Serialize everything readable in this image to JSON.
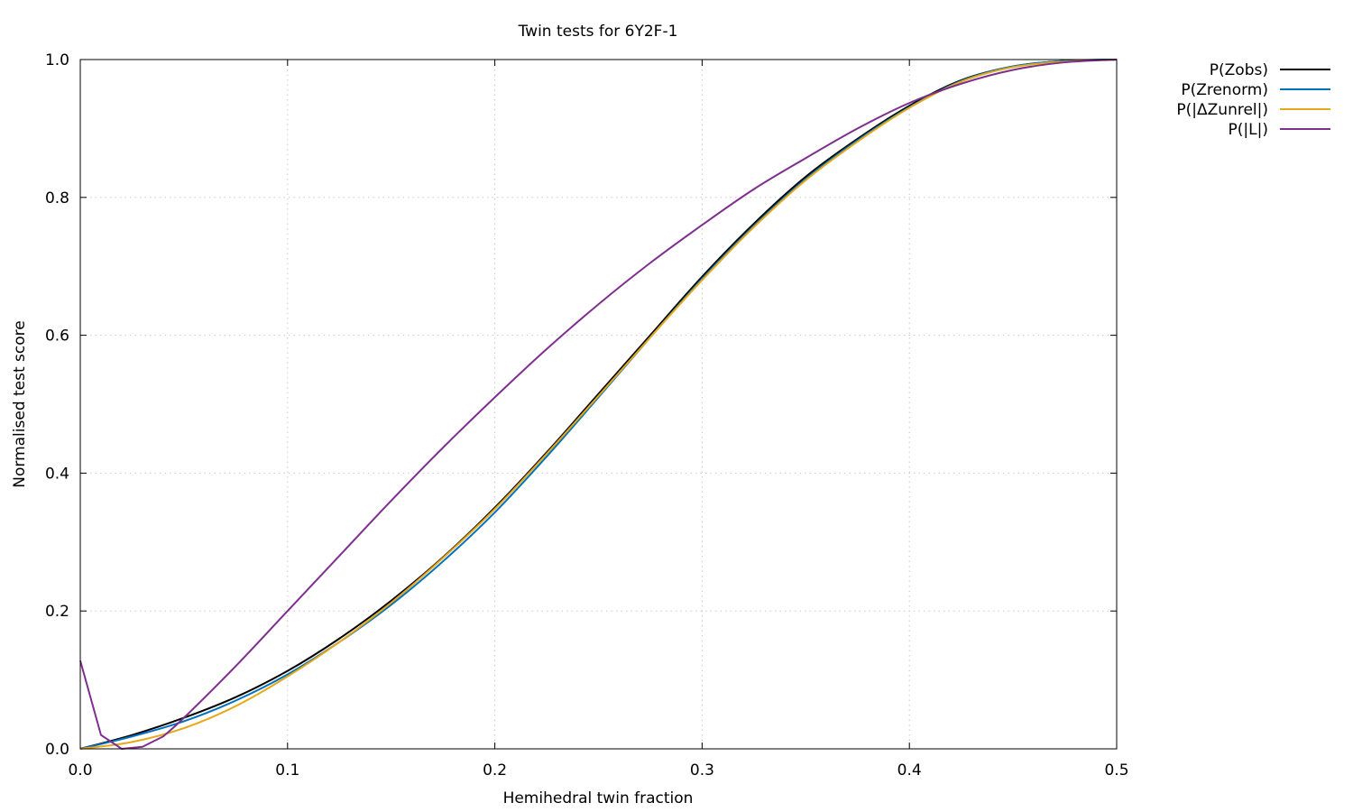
{
  "chart_data": {
    "type": "line",
    "title": "Twin tests for 6Y2F-1",
    "xlabel": "Hemihedral twin fraction",
    "ylabel": "Normalised test score",
    "xlim": [
      0.0,
      0.5
    ],
    "ylim": [
      0.0,
      1.0
    ],
    "grid": true,
    "legend_position": "outside-top-right",
    "x_ticks": [
      {
        "value": 0.0,
        "label": "0.0"
      },
      {
        "value": 0.1,
        "label": "0.1"
      },
      {
        "value": 0.2,
        "label": "0.2"
      },
      {
        "value": 0.3,
        "label": "0.3"
      },
      {
        "value": 0.4,
        "label": "0.4"
      },
      {
        "value": 0.5,
        "label": "0.5"
      }
    ],
    "y_ticks": [
      {
        "value": 0.0,
        "label": "0.0"
      },
      {
        "value": 0.2,
        "label": "0.2"
      },
      {
        "value": 0.4,
        "label": "0.4"
      },
      {
        "value": 0.6,
        "label": "0.6"
      },
      {
        "value": 0.8,
        "label": "0.8"
      },
      {
        "value": 1.0,
        "label": "1.0"
      }
    ],
    "series": [
      {
        "name": "P(Zobs)",
        "color": "#000000",
        "x": [
          0.0,
          0.025,
          0.05,
          0.075,
          0.1,
          0.125,
          0.15,
          0.175,
          0.2,
          0.225,
          0.25,
          0.275,
          0.3,
          0.325,
          0.35,
          0.375,
          0.4,
          0.425,
          0.45,
          0.475,
          0.5
        ],
        "y": [
          0.0,
          0.02,
          0.045,
          0.075,
          0.113,
          0.16,
          0.215,
          0.278,
          0.35,
          0.43,
          0.515,
          0.6,
          0.685,
          0.762,
          0.83,
          0.885,
          0.933,
          0.97,
          0.99,
          0.998,
          1.0
        ]
      },
      {
        "name": "P(Zrenorm)",
        "color": "#0072bd",
        "x": [
          0.0,
          0.025,
          0.05,
          0.075,
          0.1,
          0.125,
          0.15,
          0.175,
          0.2,
          0.225,
          0.25,
          0.275,
          0.3,
          0.325,
          0.35,
          0.375,
          0.4,
          0.425,
          0.45,
          0.475,
          0.5
        ],
        "y": [
          0.0,
          0.018,
          0.04,
          0.07,
          0.108,
          0.155,
          0.209,
          0.272,
          0.343,
          0.424,
          0.51,
          0.597,
          0.682,
          0.759,
          0.827,
          0.883,
          0.931,
          0.969,
          0.99,
          0.998,
          1.0
        ]
      },
      {
        "name": "P(|ΔZunrel|)",
        "color": "#e6a817",
        "x": [
          0.0,
          0.025,
          0.05,
          0.075,
          0.1,
          0.125,
          0.15,
          0.175,
          0.2,
          0.225,
          0.25,
          0.275,
          0.3,
          0.325,
          0.35,
          0.375,
          0.4,
          0.425,
          0.45,
          0.475,
          0.5
        ],
        "y": [
          0.0,
          0.01,
          0.03,
          0.062,
          0.105,
          0.155,
          0.212,
          0.277,
          0.348,
          0.428,
          0.512,
          0.597,
          0.68,
          0.757,
          0.825,
          0.881,
          0.93,
          0.968,
          0.989,
          0.997,
          1.0
        ]
      },
      {
        "name": "P(|L|)",
        "color": "#7e2f8e",
        "x": [
          0.0,
          0.01,
          0.02,
          0.03,
          0.04,
          0.05,
          0.075,
          0.1,
          0.125,
          0.15,
          0.175,
          0.2,
          0.225,
          0.25,
          0.275,
          0.3,
          0.325,
          0.35,
          0.375,
          0.4,
          0.425,
          0.45,
          0.475,
          0.5
        ],
        "y": [
          0.128,
          0.02,
          0.0,
          0.003,
          0.018,
          0.045,
          0.12,
          0.2,
          0.28,
          0.36,
          0.437,
          0.51,
          0.58,
          0.645,
          0.705,
          0.76,
          0.812,
          0.857,
          0.9,
          0.937,
          0.965,
          0.985,
          0.996,
          1.0
        ]
      }
    ]
  }
}
